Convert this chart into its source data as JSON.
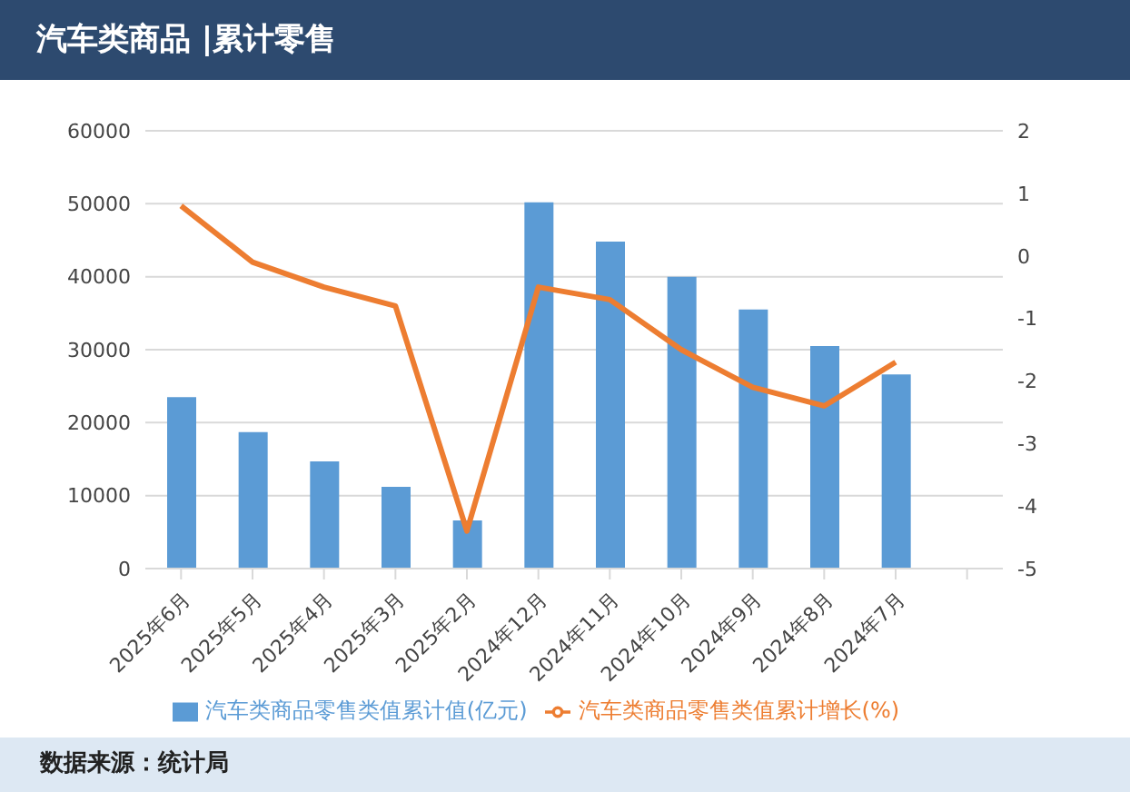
{
  "chart_data": {
    "type": "bar",
    "title": "汽车类商品 |累计零售",
    "categories": [
      "2025年6月",
      "2025年5月",
      "2025年4月",
      "2025年3月",
      "2025年2月",
      "2024年12月",
      "2024年11月",
      "2024年10月",
      "2024年9月",
      "2024年8月",
      "2024年7月",
      null
    ],
    "series": [
      {
        "name": "汽车类商品零售类值累计值(亿元)",
        "color": "#5b9bd5",
        "values": [
          23500,
          18700,
          14700,
          11200,
          6600,
          50200,
          44800,
          40000,
          35500,
          30500,
          26600,
          null
        ]
      },
      {
        "name": "汽车类商品零售类值累计增长(%)",
        "type": "line",
        "axis": "y2",
        "color": "#ed7d31",
        "values": [
          0.8,
          -0.1,
          -0.5,
          -0.8,
          -4.4,
          -0.5,
          -0.7,
          -1.5,
          -2.1,
          -2.4,
          -1.7,
          null
        ]
      }
    ],
    "ylim": [
      0,
      60000
    ],
    "yticks": [
      0,
      10000,
      20000,
      30000,
      40000,
      50000,
      60000
    ],
    "y2lim": [
      -5,
      2
    ],
    "y2ticks": [
      -5,
      -4,
      -3,
      -2,
      -1,
      0,
      1,
      2
    ],
    "grid": "y",
    "legend": "bottom",
    "marker": "none",
    "line_style": "solid",
    "annotations": [
      "数据来源：统计局"
    ]
  }
}
